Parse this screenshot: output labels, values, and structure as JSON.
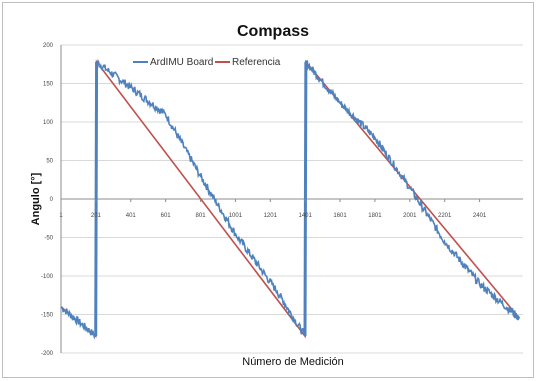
{
  "chart_data": {
    "type": "line",
    "title": "Compass",
    "xlabel": "Número de Medición",
    "ylabel": "Angulo [°]",
    "xlim": [
      1,
      2650
    ],
    "ylim": [
      -200,
      200
    ],
    "y_ticks": [
      200,
      150,
      100,
      50,
      0,
      -50,
      -100,
      -150,
      -200
    ],
    "y_tick_labels": [
      "200",
      "150",
      "100",
      "50",
      "0",
      "-50",
      "-100",
      "-150",
      "-200"
    ],
    "x_ticks": [
      1,
      201,
      401,
      601,
      801,
      1001,
      1201,
      1401,
      1601,
      1801,
      2001,
      2201,
      2401
    ],
    "x_tick_labels": [
      "1",
      "201",
      "401",
      "601",
      "801",
      "1001",
      "1201",
      "1401",
      "1601",
      "1801",
      "2001",
      "2201",
      "2401"
    ],
    "grid": true,
    "legend_position": "top",
    "series": [
      {
        "name": "ArdIMU Board",
        "color": "#4f81bd",
        "x": [
          1,
          200,
          200,
          205,
          400,
          600,
          800,
          1000,
          1240,
          1400,
          1400,
          1405,
          1600,
          1800,
          2000,
          2200,
          2400,
          2630
        ],
        "y": [
          -140,
          -178,
          -178,
          178,
          145,
          110,
          30,
          -45,
          -120,
          -178,
          -178,
          178,
          125,
          80,
          15,
          -55,
          -110,
          -155
        ]
      },
      {
        "name": "Referencia",
        "color": "#c0504d",
        "x": [
          1,
          200,
          200,
          205,
          1400,
          1400,
          1405,
          2630
        ],
        "y": [
          -140,
          -178,
          -178,
          178,
          -178,
          -178,
          178,
          -155
        ]
      }
    ]
  }
}
